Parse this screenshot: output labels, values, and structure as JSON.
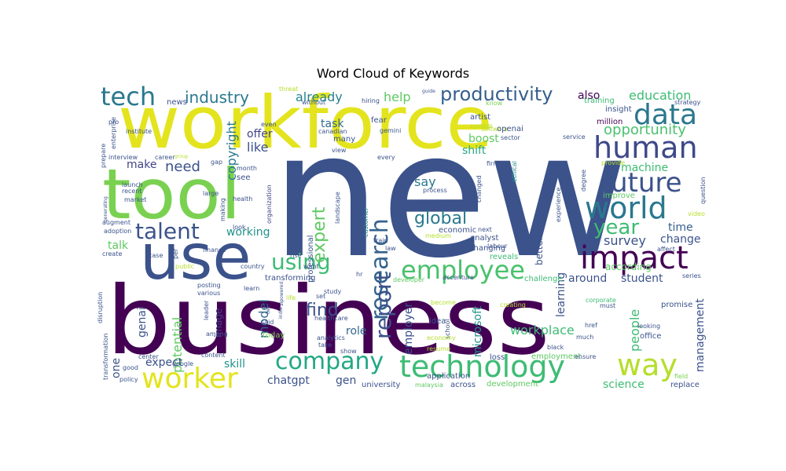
{
  "title": "Word Cloud of Keywords",
  "palette": [
    "#440154",
    "#3b528b",
    "#21918c",
    "#5ec962",
    "#fde725"
  ],
  "words": [
    {
      "text": "new",
      "size": 220,
      "color": "#3b528b",
      "rot": 0
    },
    {
      "text": "business",
      "size": 120,
      "color": "#440154",
      "rot": 0
    },
    {
      "text": "workforce",
      "size": 92,
      "color": "#e3e41d",
      "rot": 0
    },
    {
      "text": "tool",
      "size": 88,
      "color": "#7ad151",
      "rot": 0
    },
    {
      "text": "use",
      "size": 80,
      "color": "#3b528b",
      "rot": 0
    },
    {
      "text": "human",
      "size": 38,
      "color": "#3e4989",
      "rot": 0
    },
    {
      "text": "impact",
      "size": 40,
      "color": "#440154",
      "rot": 0
    },
    {
      "text": "data",
      "size": 36,
      "color": "#2a788e",
      "rot": 0
    },
    {
      "text": "technology",
      "size": 38,
      "color": "#3dbc74",
      "rot": 0
    },
    {
      "text": "world",
      "size": 38,
      "color": "#2a788e",
      "rot": 0
    },
    {
      "text": "future",
      "size": 34,
      "color": "#3b528b",
      "rot": 0
    },
    {
      "text": "way",
      "size": 38,
      "color": "#b5de2b",
      "rot": 0
    },
    {
      "text": "worker",
      "size": 36,
      "color": "#e3e41d",
      "rot": 0
    },
    {
      "text": "employee",
      "size": 32,
      "color": "#4ac16d",
      "rot": 0
    },
    {
      "text": "company",
      "size": 30,
      "color": "#22a884",
      "rot": 0
    },
    {
      "text": "tech",
      "size": 32,
      "color": "#2a788e",
      "rot": 0
    },
    {
      "text": "research",
      "size": 30,
      "color": "#33638d",
      "rot": 270
    },
    {
      "text": "report",
      "size": 28,
      "color": "#3b528b",
      "rot": 270
    },
    {
      "text": "talent",
      "size": 28,
      "color": "#3b528b",
      "rot": 0
    },
    {
      "text": "using",
      "size": 28,
      "color": "#3dbc74",
      "rot": 0
    },
    {
      "text": "productivity",
      "size": 24,
      "color": "#355f8d",
      "rot": 0
    },
    {
      "text": "global",
      "size": 22,
      "color": "#2a788e",
      "rot": 0
    },
    {
      "text": "year",
      "size": 26,
      "color": "#3dbc74",
      "rot": 0
    },
    {
      "text": "find",
      "size": 22,
      "color": "#3b528b",
      "rot": 0
    },
    {
      "text": "expert",
      "size": 22,
      "color": "#5ec962",
      "rot": 270
    },
    {
      "text": "industry",
      "size": 20,
      "color": "#2a788e",
      "rot": 0
    },
    {
      "text": "already",
      "size": 16,
      "color": "#26828e",
      "rot": 0
    },
    {
      "text": "education",
      "size": 16,
      "color": "#3dbc74",
      "rot": 0
    },
    {
      "text": "opportunity",
      "size": 18,
      "color": "#4ac16d",
      "rot": 0
    },
    {
      "text": "copyright",
      "size": 16,
      "color": "#2a788e",
      "rot": 270
    },
    {
      "text": "need",
      "size": 18,
      "color": "#3b528b",
      "rot": 0
    },
    {
      "text": "make",
      "size": 14,
      "color": "#414487",
      "rot": 0
    },
    {
      "text": "help",
      "size": 16,
      "color": "#5ec962",
      "rot": 0
    },
    {
      "text": "task",
      "size": 14,
      "color": "#31688e",
      "rot": 0
    },
    {
      "text": "say",
      "size": 16,
      "color": "#2a788e",
      "rot": 0
    },
    {
      "text": "boost",
      "size": 14,
      "color": "#5ec962",
      "rot": 0
    },
    {
      "text": "shift",
      "size": 14,
      "color": "#22a884",
      "rot": 0
    },
    {
      "text": "offer",
      "size": 14,
      "color": "#414487",
      "rot": 0
    },
    {
      "text": "like",
      "size": 16,
      "color": "#3b528b",
      "rot": 0
    },
    {
      "text": "also",
      "size": 14,
      "color": "#440154",
      "rot": 0
    },
    {
      "text": "machine",
      "size": 14,
      "color": "#3dbc74",
      "rot": 0
    },
    {
      "text": "time",
      "size": 14,
      "color": "#355f8d",
      "rot": 0
    },
    {
      "text": "change",
      "size": 14,
      "color": "#3b528b",
      "rot": 0
    },
    {
      "text": "survey",
      "size": 16,
      "color": "#3b528b",
      "rot": 0
    },
    {
      "text": "working",
      "size": 14,
      "color": "#21918c",
      "rot": 0
    },
    {
      "text": "talk",
      "size": 14,
      "color": "#5ec962",
      "rot": 0
    },
    {
      "text": "model",
      "size": 16,
      "color": "#31688e",
      "rot": 270
    },
    {
      "text": "genai",
      "size": 14,
      "color": "#3b528b",
      "rot": 270
    },
    {
      "text": "image",
      "size": 12,
      "color": "#414487",
      "rot": 270
    },
    {
      "text": "potential",
      "size": 16,
      "color": "#5ec962",
      "rot": 270
    },
    {
      "text": "role",
      "size": 14,
      "color": "#31688e",
      "rot": 0
    },
    {
      "text": "employer",
      "size": 14,
      "color": "#3b528b",
      "rot": 270
    },
    {
      "text": "microsoft",
      "size": 14,
      "color": "#21918c",
      "rot": 270
    },
    {
      "text": "learning",
      "size": 14,
      "color": "#3b528b",
      "rot": 270
    },
    {
      "text": "better",
      "size": 12,
      "color": "#3b528b",
      "rot": 270
    },
    {
      "text": "around",
      "size": 14,
      "color": "#3b528b",
      "rot": 0
    },
    {
      "text": "student",
      "size": 14,
      "color": "#3b528b",
      "rot": 0
    },
    {
      "text": "people",
      "size": 16,
      "color": "#3dbc74",
      "rot": 270
    },
    {
      "text": "management",
      "size": 14,
      "color": "#3b528b",
      "rot": 270
    },
    {
      "text": "workplace",
      "size": 16,
      "color": "#3dbc74",
      "rot": 0
    },
    {
      "text": "expect",
      "size": 14,
      "color": "#3b528b",
      "rot": 0
    },
    {
      "text": "skill",
      "size": 14,
      "color": "#21918c",
      "rot": 0
    },
    {
      "text": "one",
      "size": 14,
      "color": "#3b528b",
      "rot": 270
    },
    {
      "text": "chatgpt",
      "size": 14,
      "color": "#3b528b",
      "rot": 0
    },
    {
      "text": "gen",
      "size": 14,
      "color": "#3b528b",
      "rot": 0
    },
    {
      "text": "science",
      "size": 14,
      "color": "#3dbc74",
      "rot": 0
    },
    {
      "text": "university",
      "size": 10,
      "color": "#3b528b",
      "rot": 0
    },
    {
      "text": "development",
      "size": 10,
      "color": "#5ec962",
      "rot": 0
    },
    {
      "text": "malaysia",
      "size": 8,
      "color": "#5ec962",
      "rot": 0
    },
    {
      "text": "across",
      "size": 10,
      "color": "#3b528b",
      "rot": 0
    },
    {
      "text": "today",
      "size": 10,
      "color": "#7ad151",
      "rot": 0
    },
    {
      "text": "transforming",
      "size": 10,
      "color": "#3b528b",
      "rot": 0
    },
    {
      "text": "professional",
      "size": 10,
      "color": "#3b528b",
      "rot": 270
    },
    {
      "text": "customer",
      "size": 8,
      "color": "#26828e",
      "rot": 270
    },
    {
      "text": "landscape",
      "size": 8,
      "color": "#3b528b",
      "rot": 270
    },
    {
      "text": "organization",
      "size": 8,
      "color": "#414487",
      "rot": 270
    },
    {
      "text": "economic",
      "size": 10,
      "color": "#3b528b",
      "rot": 0
    },
    {
      "text": "analyst",
      "size": 10,
      "color": "#3b528b",
      "rot": 0
    },
    {
      "text": "changing",
      "size": 10,
      "color": "#3b528b",
      "rot": 0
    },
    {
      "text": "reveals",
      "size": 10,
      "color": "#3dbc74",
      "rot": 0
    },
    {
      "text": "challenge",
      "size": 10,
      "color": "#3dbc74",
      "rot": 0
    },
    {
      "text": "accenture",
      "size": 8,
      "color": "#3b528b",
      "rot": 0
    },
    {
      "text": "developer",
      "size": 8,
      "color": "#5ec962",
      "rot": 0
    },
    {
      "text": "labour",
      "size": 8,
      "color": "#3b528b",
      "rot": 0
    },
    {
      "text": "application",
      "size": 10,
      "color": "#3b528b",
      "rot": 0
    },
    {
      "text": "employment",
      "size": 10,
      "color": "#5ec962",
      "rot": 0
    },
    {
      "text": "loss",
      "size": 10,
      "color": "#3b528b",
      "rot": 0
    },
    {
      "text": "black",
      "size": 8,
      "color": "#3b528b",
      "rot": 0
    },
    {
      "text": "office",
      "size": 10,
      "color": "#3b528b",
      "rot": 0
    },
    {
      "text": "replace",
      "size": 10,
      "color": "#3b528b",
      "rot": 0
    },
    {
      "text": "field",
      "size": 8,
      "color": "#7ad151",
      "rot": 0
    },
    {
      "text": "promise",
      "size": 10,
      "color": "#3b528b",
      "rot": 0
    },
    {
      "text": "looking",
      "size": 8,
      "color": "#3b528b",
      "rot": 0
    },
    {
      "text": "corporate",
      "size": 8,
      "color": "#3dbc74",
      "rot": 0
    },
    {
      "text": "according",
      "size": 12,
      "color": "#5ec962",
      "rot": 0
    },
    {
      "text": "improve",
      "size": 10,
      "color": "#5ec962",
      "rot": 0
    },
    {
      "text": "series",
      "size": 8,
      "color": "#3b528b",
      "rot": 0
    },
    {
      "text": "video",
      "size": 8,
      "color": "#b5de2b",
      "rot": 0
    },
    {
      "text": "affect",
      "size": 8,
      "color": "#3b528b",
      "rot": 0
    },
    {
      "text": "question",
      "size": 8,
      "color": "#3b528b",
      "rot": 270
    },
    {
      "text": "experience",
      "size": 8,
      "color": "#3b528b",
      "rot": 270
    },
    {
      "text": "degree",
      "size": 8,
      "color": "#3b528b",
      "rot": 270
    },
    {
      "text": "provide",
      "size": 8,
      "color": "#b5de2b",
      "rot": 0
    },
    {
      "text": "service",
      "size": 8,
      "color": "#3b528b",
      "rot": 0
    },
    {
      "text": "million",
      "size": 10,
      "color": "#440154",
      "rot": 0
    },
    {
      "text": "insight",
      "size": 10,
      "color": "#3b528b",
      "rot": 0
    },
    {
      "text": "strategy",
      "size": 8,
      "color": "#3b528b",
      "rot": 0
    },
    {
      "text": "training",
      "size": 10,
      "color": "#3dbc74",
      "rot": 0
    },
    {
      "text": "know",
      "size": 8,
      "color": "#7ad151",
      "rot": 0
    },
    {
      "text": "guide",
      "size": 6,
      "color": "#3b528b",
      "rot": 0
    },
    {
      "text": "artist",
      "size": 10,
      "color": "#3b528b",
      "rot": 0
    },
    {
      "text": "software",
      "size": 8,
      "color": "#b5de2b",
      "rot": 0
    },
    {
      "text": "system",
      "size": 8,
      "color": "#b5de2b",
      "rot": 0
    },
    {
      "text": "openai",
      "size": 10,
      "color": "#3b528b",
      "rot": 0
    },
    {
      "text": "sector",
      "size": 8,
      "color": "#3b528b",
      "rot": 0
    },
    {
      "text": "firm",
      "size": 8,
      "color": "#3b528b",
      "rot": 0
    },
    {
      "text": "ethical",
      "size": 8,
      "color": "#21918c",
      "rot": 270
    },
    {
      "text": "changed",
      "size": 8,
      "color": "#3b528b",
      "rot": 270
    },
    {
      "text": "process",
      "size": 8,
      "color": "#3b528b",
      "rot": 0
    },
    {
      "text": "medium",
      "size": 8,
      "color": "#b5de2b",
      "rot": 0
    },
    {
      "text": "next",
      "size": 8,
      "color": "#3b528b",
      "rot": 0
    },
    {
      "text": "fear",
      "size": 10,
      "color": "#3b528b",
      "rot": 0
    },
    {
      "text": "gemini",
      "size": 8,
      "color": "#3b528b",
      "rot": 0
    },
    {
      "text": "hiring",
      "size": 8,
      "color": "#3b528b",
      "rot": 0
    },
    {
      "text": "canadian",
      "size": 8,
      "color": "#3b528b",
      "rot": 0
    },
    {
      "text": "many",
      "size": 10,
      "color": "#3b528b",
      "rot": 0
    },
    {
      "text": "view",
      "size": 8,
      "color": "#3b528b",
      "rot": 0
    },
    {
      "text": "every",
      "size": 8,
      "color": "#3b528b",
      "rot": 0
    },
    {
      "text": "without",
      "size": 8,
      "color": "#3b528b",
      "rot": 0
    },
    {
      "text": "threat",
      "size": 8,
      "color": "#b5de2b",
      "rot": 0
    },
    {
      "text": "news",
      "size": 10,
      "color": "#3b528b",
      "rot": 0
    },
    {
      "text": "even",
      "size": 8,
      "color": "#3b528b",
      "rot": 0
    },
    {
      "text": "pro",
      "size": 8,
      "color": "#3b528b",
      "rot": 0
    },
    {
      "text": "career",
      "size": 8,
      "color": "#3b528b",
      "rot": 0
    },
    {
      "text": "group",
      "size": 6,
      "color": "#b5de2b",
      "rot": 0
    },
    {
      "text": "gap",
      "size": 8,
      "color": "#3b528b",
      "rot": 0
    },
    {
      "text": "month",
      "size": 8,
      "color": "#3b528b",
      "rot": 0
    },
    {
      "text": "see",
      "size": 10,
      "color": "#3b528b",
      "rot": 0
    },
    {
      "text": "health",
      "size": 8,
      "color": "#3b528b",
      "rot": 0
    },
    {
      "text": "making",
      "size": 8,
      "color": "#3b528b",
      "rot": 270
    },
    {
      "text": "large",
      "size": 8,
      "color": "#3b528b",
      "rot": 0
    },
    {
      "text": "look",
      "size": 8,
      "color": "#3b528b",
      "rot": 0
    },
    {
      "text": "finance",
      "size": 8,
      "color": "#3b528b",
      "rot": 0
    },
    {
      "text": "interview",
      "size": 8,
      "color": "#3b528b",
      "rot": 0
    },
    {
      "text": "enterprise",
      "size": 8,
      "color": "#3b528b",
      "rot": 270
    },
    {
      "text": "prepare",
      "size": 8,
      "color": "#3b528b",
      "rot": 270
    },
    {
      "text": "launch",
      "size": 8,
      "color": "#3b528b",
      "rot": 0
    },
    {
      "text": "recent",
      "size": 8,
      "color": "#3b528b",
      "rot": 0
    },
    {
      "text": "market",
      "size": 8,
      "color": "#3b528b",
      "rot": 0
    },
    {
      "text": "augment",
      "size": 8,
      "color": "#3b528b",
      "rot": 0
    },
    {
      "text": "adoption",
      "size": 8,
      "color": "#3b528b",
      "rot": 0
    },
    {
      "text": "create",
      "size": 8,
      "color": "#3b528b",
      "rot": 0
    },
    {
      "text": "generating",
      "size": 6,
      "color": "#3b528b",
      "rot": 270
    },
    {
      "text": "institute",
      "size": 8,
      "color": "#3b528b",
      "rot": 0
    },
    {
      "text": "case",
      "size": 8,
      "color": "#3b528b",
      "rot": 0
    },
    {
      "text": "public",
      "size": 8,
      "color": "#b5de2b",
      "rot": 0
    },
    {
      "text": "per",
      "size": 8,
      "color": "#3b528b",
      "rot": 270
    },
    {
      "text": "country",
      "size": 8,
      "color": "#3b528b",
      "rot": 0
    },
    {
      "text": "rise",
      "size": 8,
      "color": "#3b528b",
      "rot": 0
    },
    {
      "text": "want",
      "size": 8,
      "color": "#3b528b",
      "rot": 0
    },
    {
      "text": "posting",
      "size": 8,
      "color": "#3b528b",
      "rot": 0
    },
    {
      "text": "various",
      "size": 8,
      "color": "#3b528b",
      "rot": 0
    },
    {
      "text": "learn",
      "size": 8,
      "color": "#3b528b",
      "rot": 0
    },
    {
      "text": "life",
      "size": 8,
      "color": "#b5de2b",
      "rot": 0
    },
    {
      "text": "leader",
      "size": 8,
      "color": "#3b528b",
      "rot": 270
    },
    {
      "text": "said",
      "size": 8,
      "color": "#3b528b",
      "rot": 0
    },
    {
      "text": "among",
      "size": 8,
      "color": "#3b528b",
      "rot": 0
    },
    {
      "text": "content",
      "size": 8,
      "color": "#3b528b",
      "rot": 0
    },
    {
      "text": "google",
      "size": 8,
      "color": "#3b528b",
      "rot": 0
    },
    {
      "text": "good",
      "size": 8,
      "color": "#3b528b",
      "rot": 0
    },
    {
      "text": "policy",
      "size": 8,
      "color": "#3b528b",
      "rot": 0
    },
    {
      "text": "center",
      "size": 8,
      "color": "#3b528b",
      "rot": 0
    },
    {
      "text": "disruption",
      "size": 8,
      "color": "#3b528b",
      "rot": 270
    },
    {
      "text": "transformation",
      "size": 8,
      "color": "#3b528b",
      "rot": 270
    },
    {
      "text": "set",
      "size": 8,
      "color": "#3b528b",
      "rot": 0
    },
    {
      "text": "study",
      "size": 8,
      "color": "#3b528b",
      "rot": 0
    },
    {
      "text": "hr",
      "size": 8,
      "color": "#3b528b",
      "rot": 0
    },
    {
      "text": "healthcare",
      "size": 8,
      "color": "#3b528b",
      "rot": 0
    },
    {
      "text": "analytics",
      "size": 8,
      "color": "#3b528b",
      "rot": 0
    },
    {
      "text": "take",
      "size": 8,
      "color": "#3b528b",
      "rot": 0
    },
    {
      "text": "idea",
      "size": 10,
      "color": "#3b528b",
      "rot": 0
    },
    {
      "text": "show",
      "size": 8,
      "color": "#3b528b",
      "rot": 0
    },
    {
      "text": "school",
      "size": 8,
      "color": "#3b528b",
      "rot": 270
    },
    {
      "text": "become",
      "size": 8,
      "color": "#b5de2b",
      "rot": 0
    },
    {
      "text": "resume",
      "size": 8,
      "color": "#b5de2b",
      "rot": 0
    },
    {
      "text": "economy",
      "size": 8,
      "color": "#b5de2b",
      "rot": 0
    },
    {
      "text": "creating",
      "size": 8,
      "color": "#b5de2b",
      "rot": 0
    },
    {
      "text": "href",
      "size": 8,
      "color": "#3b528b",
      "rot": 0
    },
    {
      "text": "ensure",
      "size": 8,
      "color": "#3b528b",
      "rot": 0
    },
    {
      "text": "much",
      "size": 8,
      "color": "#3b528b",
      "rot": 0
    },
    {
      "text": "must",
      "size": 8,
      "color": "#3b528b",
      "rot": 0
    },
    {
      "text": "law",
      "size": 8,
      "color": "#3b528b",
      "rot": 0
    },
    {
      "text": "train",
      "size": 8,
      "color": "#3b528b",
      "rot": 0
    },
    {
      "text": "two",
      "size": 6,
      "color": "#3b528b",
      "rot": 270
    },
    {
      "text": "aipowered",
      "size": 6,
      "color": "#3b528b",
      "rot": 270
    },
    {
      "text": "india",
      "size": 6,
      "color": "#3b528b",
      "rot": 270
    }
  ]
}
